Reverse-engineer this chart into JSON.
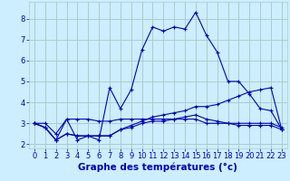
{
  "background_color": "#cceeff",
  "grid_color": "#aacccc",
  "line_color": "#0000bb",
  "xlabel": "Graphe des températures (°c)",
  "xlabel_fontsize": 7.5,
  "tick_fontsize": 6.0,
  "xlim": [
    -0.5,
    23.5
  ],
  "ylim": [
    1.8,
    8.8
  ],
  "yticks": [
    2,
    3,
    4,
    5,
    6,
    7,
    8
  ],
  "xticks": [
    0,
    1,
    2,
    3,
    4,
    5,
    6,
    7,
    8,
    9,
    10,
    11,
    12,
    13,
    14,
    15,
    16,
    17,
    18,
    19,
    20,
    21,
    22,
    23
  ],
  "series": [
    [
      3.0,
      2.8,
      2.2,
      3.2,
      2.2,
      2.4,
      2.2,
      4.7,
      3.7,
      4.6,
      6.5,
      7.6,
      7.4,
      7.6,
      7.5,
      8.3,
      7.2,
      6.4,
      5.0,
      5.0,
      4.4,
      3.7,
      3.6,
      2.7
    ],
    [
      3.0,
      3.0,
      2.5,
      3.2,
      3.2,
      3.2,
      3.1,
      3.1,
      3.2,
      3.2,
      3.2,
      3.2,
      3.2,
      3.2,
      3.2,
      3.2,
      3.0,
      3.0,
      3.0,
      3.0,
      3.0,
      3.0,
      3.0,
      2.8
    ],
    [
      3.0,
      2.8,
      2.2,
      2.5,
      2.4,
      2.4,
      2.4,
      2.4,
      2.7,
      2.8,
      3.0,
      3.1,
      3.1,
      3.2,
      3.3,
      3.4,
      3.2,
      3.1,
      3.0,
      2.9,
      2.9,
      2.9,
      2.9,
      2.7
    ],
    [
      3.0,
      2.8,
      2.2,
      2.5,
      2.4,
      2.4,
      2.4,
      2.4,
      2.7,
      2.9,
      3.1,
      3.3,
      3.4,
      3.5,
      3.6,
      3.8,
      3.8,
      3.9,
      4.1,
      4.3,
      4.5,
      4.6,
      4.7,
      2.7
    ]
  ]
}
